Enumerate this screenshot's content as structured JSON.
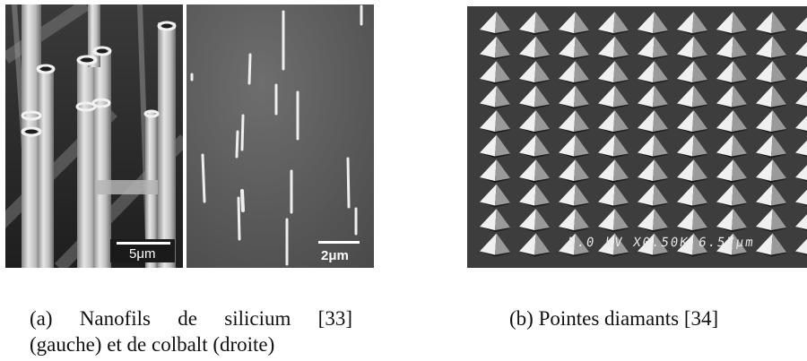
{
  "figure": {
    "panel_a_left": {
      "scale_label": "5μm"
    },
    "panel_a_right": {
      "scale_label": "2μm"
    },
    "panel_b": {
      "imprint": "5.0 kV X0.50K 6.57μm"
    },
    "caption_a": {
      "line1_words": [
        "(a)",
        "Nanofils",
        "de",
        "silicium",
        "[33]"
      ],
      "line2": "(gauche) et de colbalt (droite)"
    },
    "caption_b": "(b) Pointes diamants [34]"
  }
}
